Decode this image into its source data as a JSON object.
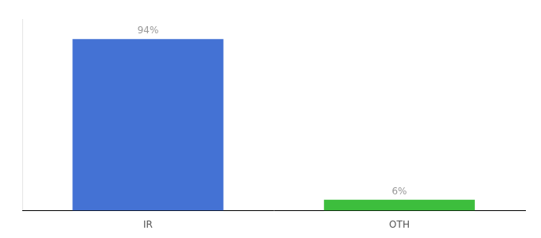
{
  "chart_data": {
    "type": "bar",
    "categories": [
      "IR",
      "OTH"
    ],
    "values": [
      94,
      6
    ],
    "colors": [
      "#4472d4",
      "#3dbe3d"
    ],
    "value_labels": [
      "94%",
      "6%"
    ],
    "data_labels": true,
    "ylim": [
      0,
      105
    ],
    "tick_labels": "x",
    "grid": false
  }
}
